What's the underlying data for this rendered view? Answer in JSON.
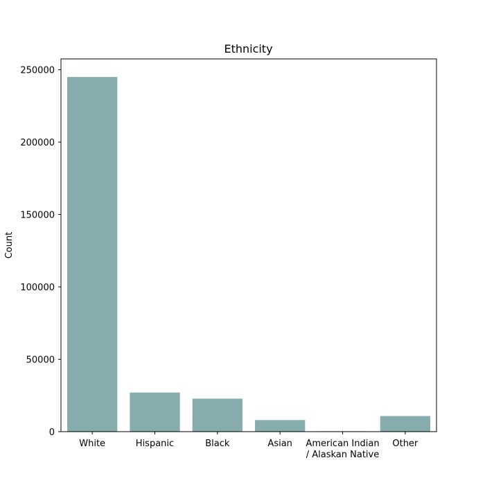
{
  "chart_data": {
    "type": "bar",
    "title": "Ethnicity",
    "xlabel": "",
    "ylabel": "Count",
    "categories": [
      [
        "White"
      ],
      [
        "Hispanic"
      ],
      [
        "Black"
      ],
      [
        "Asian"
      ],
      [
        "American Indian",
        "/ Alaskan Native"
      ],
      [
        "Other"
      ]
    ],
    "values": [
      245000,
      27000,
      22800,
      8000,
      300,
      10800
    ],
    "ylim": [
      0,
      257500
    ],
    "yticks": [
      0,
      50000,
      100000,
      150000,
      200000,
      250000
    ],
    "ytick_labels": [
      "0",
      "50000",
      "100000",
      "150000",
      "200000",
      "250000"
    ],
    "grid": false,
    "bar_color": "#86acae"
  }
}
